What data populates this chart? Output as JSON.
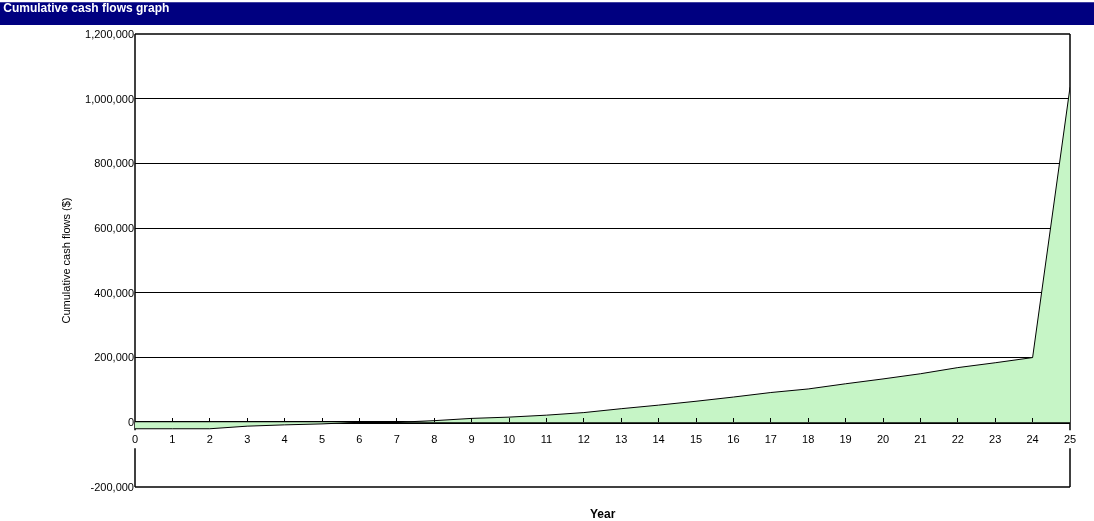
{
  "chart_data": {
    "type": "area",
    "title": "Cumulative cash flows graph",
    "xlabel": "Year",
    "ylabel": "Cumulative cash flows ($)",
    "x": [
      0,
      1,
      2,
      3,
      4,
      5,
      6,
      7,
      8,
      9,
      10,
      11,
      12,
      13,
      14,
      15,
      16,
      17,
      18,
      19,
      20,
      21,
      22,
      23,
      24,
      25
    ],
    "series": [
      {
        "color": "#c6f5c6",
        "values": [
          -20000,
          -20000,
          -20000,
          -12000,
          -8000,
          -5000,
          0,
          0,
          5000,
          12000,
          16000,
          22000,
          30000,
          42000,
          53000,
          65000,
          78000,
          92000,
          103000,
          119000,
          134000,
          150000,
          169000,
          184000,
          200000,
          1035000
        ]
      }
    ],
    "xlim": [
      0,
      25
    ],
    "xticks": [
      0,
      1,
      2,
      3,
      4,
      5,
      6,
      7,
      8,
      9,
      10,
      11,
      12,
      13,
      14,
      15,
      16,
      17,
      18,
      19,
      20,
      21,
      22,
      23,
      24,
      25
    ],
    "ylim": [
      -200000,
      1200000
    ],
    "yticks": [
      {
        "value": -200000,
        "label": "-200,000"
      },
      {
        "value": 0,
        "label": "0"
      },
      {
        "value": 200000,
        "label": "200,000"
      },
      {
        "value": 400000,
        "label": "400,000"
      },
      {
        "value": 600000,
        "label": "600,000"
      },
      {
        "value": 800000,
        "label": "800,000"
      },
      {
        "value": 1000000,
        "label": "1,000,000"
      },
      {
        "value": 1200000,
        "label": "1,200,000"
      }
    ],
    "grid": "y"
  }
}
